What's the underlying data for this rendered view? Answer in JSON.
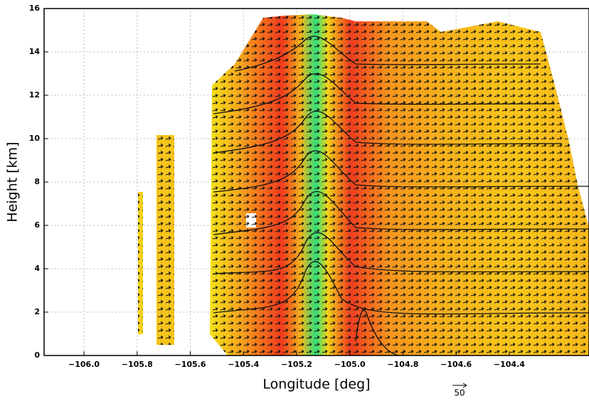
{
  "chart_data": {
    "type": "cross-section",
    "xlabel": "Longitude [deg]",
    "ylabel": "Height [km]",
    "xlim": [
      -106.15,
      -104.1
    ],
    "ylim": [
      0,
      16
    ],
    "xticks": [
      {
        "value": -106.0,
        "label": "−106.0"
      },
      {
        "value": -105.8,
        "label": "−105.8"
      },
      {
        "value": -105.6,
        "label": "−105.6"
      },
      {
        "value": -105.4,
        "label": "−105.4"
      },
      {
        "value": -105.2,
        "label": "−105.2"
      },
      {
        "value": -105.0,
        "label": "−105.0"
      },
      {
        "value": -104.8,
        "label": "−104.8"
      },
      {
        "value": -104.6,
        "label": "−104.6"
      },
      {
        "value": -104.4,
        "label": "−104.4"
      }
    ],
    "yticks": [
      0,
      2,
      4,
      6,
      8,
      10,
      12,
      14,
      16
    ],
    "grid": true,
    "vector_scale": 50
  }
}
